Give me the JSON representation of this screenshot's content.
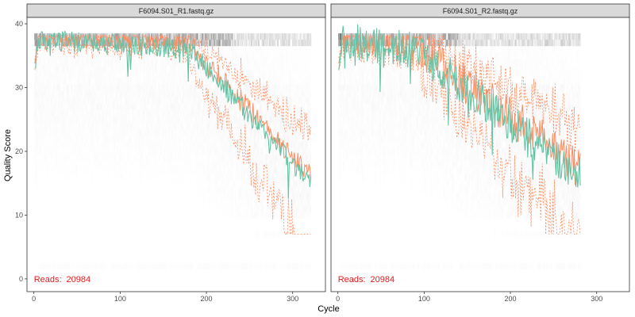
{
  "colors": {
    "mean": "#66C2A5",
    "median": "#FC8D62",
    "quartile": "#FC8D62",
    "reads": "#E41A1C",
    "heat_light": "#F2F2F2",
    "heat_dark": "#000000",
    "strip_bg": "#D9D9D9",
    "panel_border": "#333333"
  },
  "chart_data": {
    "type": "heatmap",
    "title": "",
    "xlabel": "Cycle",
    "ylabel": "Quality Score",
    "xlim": [
      -8,
      338
    ],
    "ylim": [
      -2,
      41
    ],
    "x_ticks": [
      0,
      100,
      200,
      300
    ],
    "y_ticks": [
      0,
      10,
      20,
      30,
      40
    ],
    "grid": false,
    "legend": "none",
    "panels": [
      {
        "name": "F6094.S01_R1.fastq.gz",
        "reads_label": "Reads:",
        "reads_count": "20984",
        "cycles": 321,
        "decline_start": 180,
        "end_mean": 15,
        "end_median": 14,
        "noise": 1.6,
        "score_bands": [
          2,
          7,
          10,
          11,
          12,
          13,
          14,
          15,
          16,
          17,
          18,
          19,
          20,
          21,
          22,
          23,
          24,
          25,
          26,
          27,
          28,
          29,
          30,
          31,
          32,
          33,
          34,
          35,
          36,
          37,
          38
        ]
      },
      {
        "name": "F6094.S01_R2.fastq.gz",
        "reads_label": "Reads:",
        "reads_count": "20984",
        "cycles": 281,
        "decline_start": 90,
        "end_mean": 16,
        "end_median": 14,
        "noise": 3.0,
        "score_bands": [
          2,
          7,
          10,
          11,
          12,
          13,
          14,
          15,
          16,
          17,
          18,
          19,
          20,
          21,
          22,
          23,
          24,
          25,
          26,
          27,
          28,
          29,
          30,
          31,
          32,
          33,
          34,
          35,
          36,
          37,
          38
        ]
      }
    ]
  }
}
